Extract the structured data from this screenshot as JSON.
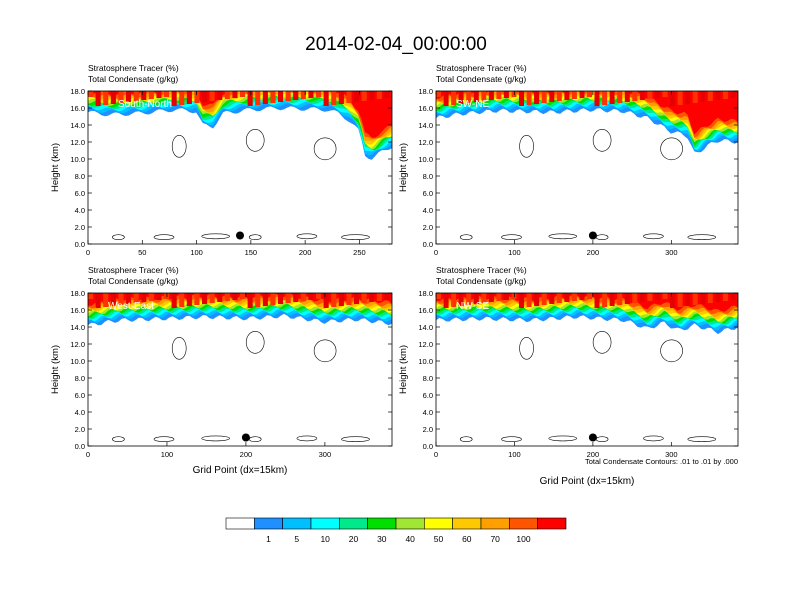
{
  "title": "2014-02-04_00:00:00",
  "chart_data": [
    {
      "type": "heatmap",
      "panel_label": "South-North",
      "title_line1": "Stratosphere Tracer   (%)",
      "title_line2": "Total Condensate   (g/kg)",
      "ylabel": "Height (km)",
      "xlabel": "",
      "xlim": [
        0,
        280
      ],
      "ylim": [
        0,
        18
      ],
      "xticks": [
        0,
        50,
        100,
        150,
        200,
        250
      ],
      "yticks": [
        0,
        2,
        4,
        6,
        8,
        10,
        12,
        14,
        16,
        18
      ],
      "tracer_base_km": [
        [
          0,
          15.5
        ],
        [
          20,
          15.2
        ],
        [
          50,
          15.4
        ],
        [
          80,
          15.8
        ],
        [
          100,
          15.6
        ],
        [
          105,
          14.0
        ],
        [
          115,
          13.8
        ],
        [
          125,
          15.4
        ],
        [
          150,
          15.8
        ],
        [
          175,
          16.0
        ],
        [
          200,
          15.9
        ],
        [
          220,
          15.8
        ],
        [
          230,
          15.4
        ],
        [
          240,
          14.6
        ],
        [
          250,
          13.2
        ],
        [
          255,
          10.5
        ],
        [
          262,
          10.0
        ],
        [
          270,
          10.8
        ],
        [
          280,
          11.5
        ]
      ],
      "marker": {
        "x": 140,
        "y": 1.0
      }
    },
    {
      "type": "heatmap",
      "panel_label": "SW-NE",
      "title_line1": "Stratosphere Tracer   (%)",
      "title_line2": "Total Condensate   (g/kg)",
      "ylabel": "Height (km)",
      "xlabel": "",
      "xlim": [
        0,
        385
      ],
      "ylim": [
        0,
        18
      ],
      "xticks": [
        0,
        100,
        200,
        300
      ],
      "yticks": [
        0,
        2,
        4,
        6,
        8,
        10,
        12,
        14,
        16,
        18
      ],
      "tracer_base_km": [
        [
          0,
          14.8
        ],
        [
          30,
          15.3
        ],
        [
          80,
          15.7
        ],
        [
          150,
          15.5
        ],
        [
          200,
          15.8
        ],
        [
          240,
          15.6
        ],
        [
          270,
          14.8
        ],
        [
          300,
          13.2
        ],
        [
          320,
          12.8
        ],
        [
          330,
          10.5
        ],
        [
          345,
          11.5
        ],
        [
          360,
          12.2
        ],
        [
          385,
          12.0
        ]
      ],
      "marker": {
        "x": 200,
        "y": 1.0
      }
    },
    {
      "type": "heatmap",
      "panel_label": "West-East",
      "title_line1": "Stratosphere Tracer   (%)",
      "title_line2": "Total Condensate   (g/kg)",
      "ylabel": "Height (km)",
      "xlabel": "Grid Point (dx=15km)",
      "xlim": [
        0,
        385
      ],
      "ylim": [
        0,
        18
      ],
      "xticks": [
        0,
        100,
        200,
        300
      ],
      "yticks": [
        0,
        2,
        4,
        6,
        8,
        10,
        12,
        14,
        16,
        18
      ],
      "tracer_base_km": [
        [
          0,
          14.2
        ],
        [
          40,
          14.8
        ],
        [
          100,
          15.0
        ],
        [
          150,
          15.2
        ],
        [
          200,
          15.0
        ],
        [
          250,
          15.3
        ],
        [
          300,
          14.6
        ],
        [
          340,
          14.9
        ],
        [
          385,
          14.4
        ]
      ],
      "marker": {
        "x": 200,
        "y": 1.0
      }
    },
    {
      "type": "heatmap",
      "panel_label": "NW-SE",
      "title_line1": "Stratosphere Tracer   (%)",
      "title_line2": "Total Condensate   (g/kg)",
      "ylabel": "Height (km)",
      "xlabel": "Grid Point (dx=15km)",
      "xlim": [
        0,
        385
      ],
      "ylim": [
        0,
        18
      ],
      "xticks": [
        0,
        100,
        200,
        300
      ],
      "yticks": [
        0,
        2,
        4,
        6,
        8,
        10,
        12,
        14,
        16,
        18
      ],
      "tracer_base_km": [
        [
          0,
          14.8
        ],
        [
          60,
          15.0
        ],
        [
          120,
          14.8
        ],
        [
          180,
          15.2
        ],
        [
          240,
          14.8
        ],
        [
          270,
          13.8
        ],
        [
          290,
          14.5
        ],
        [
          310,
          13.6
        ],
        [
          330,
          14.2
        ],
        [
          360,
          13.4
        ],
        [
          385,
          14.0
        ]
      ],
      "marker": {
        "x": 200,
        "y": 1.0
      }
    }
  ],
  "colorbar": {
    "labels": [
      "1",
      "5",
      "10",
      "20",
      "30",
      "40",
      "50",
      "60",
      "70",
      "100"
    ],
    "colors": [
      "#ffffff",
      "#1e90ff",
      "#00bfff",
      "#00ffff",
      "#00e98a",
      "#00e000",
      "#a0e632",
      "#ffff00",
      "#ffc800",
      "#ff9f00",
      "#ff5500",
      "#ff0000"
    ]
  },
  "contour_note": "Total Condensate Contours: .01 to .01 by .000"
}
